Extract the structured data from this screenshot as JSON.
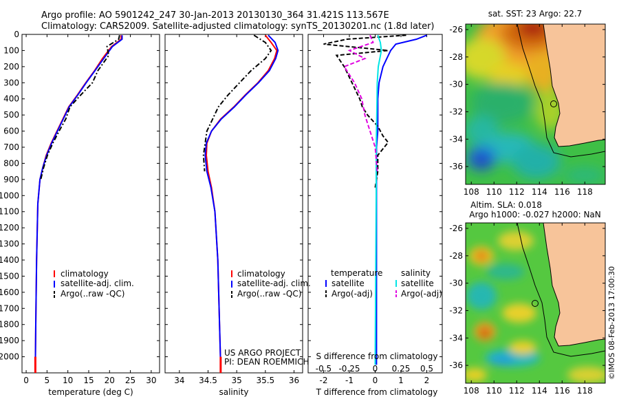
{
  "header": {
    "line1": "Argo profile: AO 5901242_247 30-Jan-2013 20130130_364 31.421S 113.567E",
    "line2": "Climatology: CARS2009. Satellite-adjusted climatology: synTS_20130201.nc (1.8d later)"
  },
  "colors": {
    "climatology": "#ff0000",
    "satellite": "#0000ff",
    "argo": "#000000",
    "salinity_sat": "#00e5e5",
    "salinity_argo": "#e000e0",
    "land": "#f7c49a"
  },
  "chart_data": [
    {
      "type": "line",
      "id": "temperature-profile",
      "xlabel": "temperature (deg C)",
      "ylabel": "",
      "xlim": [
        -1,
        32
      ],
      "ylim": [
        2100,
        0
      ],
      "xticks": [
        0,
        5,
        10,
        15,
        20,
        25,
        30
      ],
      "yticks": [
        0,
        100,
        200,
        300,
        400,
        500,
        600,
        700,
        800,
        900,
        1000,
        1100,
        1200,
        1300,
        1400,
        1500,
        1600,
        1700,
        1800,
        1900,
        2000
      ],
      "series": [
        {
          "name": "climatology",
          "color": "#ff0000",
          "dash": "solid",
          "x": [
            22.8,
            22.8,
            20.5,
            18.3,
            16.4,
            14.3,
            12.3,
            10.2,
            8.8,
            7.4,
            6.0,
            4.8,
            4.0,
            3.3,
            2.8,
            2.5,
            2.3,
            2.2
          ],
          "y": [
            5,
            30,
            75,
            150,
            225,
            300,
            375,
            450,
            525,
            600,
            675,
            750,
            825,
            900,
            1050,
            1400,
            1800,
            2050
          ]
        },
        {
          "name": "satellite-adj. clim.",
          "color": "#0000ff",
          "dash": "solid",
          "x": [
            23.0,
            23.0,
            20.7,
            18.6,
            16.5,
            14.4,
            12.4,
            10.3,
            8.9,
            7.5,
            6.1,
            4.9,
            4.0,
            3.3,
            2.8,
            2.5,
            2.3,
            2.2
          ],
          "y": [
            5,
            30,
            75,
            150,
            225,
            300,
            375,
            450,
            525,
            600,
            675,
            750,
            825,
            900,
            1050,
            1400,
            1800,
            2050
          ]
        },
        {
          "name": "Argo(..raw -QC)",
          "color": "#000000",
          "dash": "dashdot",
          "x": [
            22.4,
            22.2,
            19.4,
            19.8,
            17.2,
            15.9,
            13.1,
            10.5,
            9.5,
            7.9,
            6.4,
            5.1,
            4.2,
            3.5
          ],
          "y": [
            5,
            30,
            75,
            130,
            225,
            300,
            375,
            450,
            525,
            600,
            675,
            750,
            825,
            900
          ]
        }
      ],
      "legend": {
        "position": "lower-middle",
        "entries": [
          "climatology",
          "satellite-adj. clim.",
          "Argo(..raw -QC)"
        ]
      }
    },
    {
      "type": "line",
      "id": "salinity-profile",
      "xlabel": "salinity",
      "xlim": [
        33.75,
        36.15
      ],
      "ylim": [
        2100,
        0
      ],
      "xticks": [
        34,
        34.5,
        35,
        35.5,
        36
      ],
      "xticklabels": [
        "34",
        "34.5",
        "35",
        "35.5",
        "36"
      ],
      "series": [
        {
          "name": "climatology",
          "color": "#ff0000",
          "dash": "solid",
          "x": [
            35.5,
            35.6,
            35.7,
            35.66,
            35.55,
            35.37,
            35.15,
            34.95,
            34.72,
            34.56,
            34.48,
            34.47,
            34.5,
            34.56,
            34.62,
            34.67,
            34.7,
            34.72
          ],
          "y": [
            5,
            50,
            100,
            150,
            225,
            300,
            375,
            450,
            525,
            600,
            675,
            750,
            850,
            950,
            1100,
            1400,
            1800,
            2050
          ]
        },
        {
          "name": "satellite-adj. clim.",
          "color": "#0000ff",
          "dash": "solid",
          "x": [
            35.55,
            35.67,
            35.72,
            35.68,
            35.57,
            35.38,
            35.16,
            34.96,
            34.73,
            34.56,
            34.47,
            34.45,
            34.48,
            34.55,
            34.62,
            34.67,
            34.7,
            34.72
          ],
          "y": [
            5,
            50,
            100,
            150,
            225,
            300,
            375,
            450,
            525,
            600,
            675,
            750,
            850,
            950,
            1100,
            1400,
            1800,
            2050
          ]
        },
        {
          "name": "Argo(..raw -QC)",
          "color": "#000000",
          "dash": "dashdot",
          "x": [
            35.3,
            35.5,
            35.6,
            35.5,
            35.25,
            35.05,
            34.85,
            34.68,
            34.58,
            34.48,
            34.45,
            34.42,
            34.44
          ],
          "y": [
            5,
            50,
            100,
            150,
            225,
            300,
            375,
            450,
            525,
            600,
            675,
            750,
            850
          ]
        }
      ],
      "legend": {
        "position": "lower-middle",
        "entries": [
          "climatology",
          "satellite-adj. clim.",
          "Argo(..raw -QC)"
        ]
      },
      "annotation": {
        "line1": "US ARGO PROJECT",
        "line2": "PI: DEAN ROEMMICH"
      }
    },
    {
      "type": "line",
      "id": "difference-profile",
      "xlabel": "T difference from climatology",
      "xlabel_top": "S difference from climatology",
      "xlim": [
        -2.6,
        2.6
      ],
      "ylim": [
        2100,
        0
      ],
      "xticks": [
        -2,
        -1,
        0,
        1,
        2
      ],
      "xticks_s": [
        -0.5,
        -0.25,
        0,
        0.25,
        0.5
      ],
      "xticklabels_s": [
        "-0.5",
        "-0.25",
        "0",
        "0.25",
        "0.5"
      ],
      "series": [
        {
          "name": "satellite",
          "group": "temperature",
          "color": "#0000ff",
          "dash": "solid",
          "x": [
            2.0,
            1.6,
            0.8,
            0.6,
            0.45,
            0.3,
            0.15,
            0.1,
            0.1,
            0.1,
            0.05,
            0.05,
            0.05,
            0.05,
            0.05
          ],
          "y": [
            5,
            30,
            60,
            100,
            150,
            200,
            300,
            400,
            500,
            600,
            700,
            800,
            1000,
            1500,
            2050
          ]
        },
        {
          "name": "Argo(-adj)",
          "group": "temperature",
          "color": "#000000",
          "dash": "dashed",
          "x": [
            1.2,
            -1.1,
            -2.0,
            0.5,
            -1.5,
            -1.2,
            -0.9,
            -0.6,
            -0.5,
            -0.3,
            0.1,
            0.3,
            0.5,
            0.1,
            0.1,
            0.0
          ],
          "y": [
            5,
            30,
            60,
            100,
            130,
            200,
            300,
            400,
            450,
            500,
            570,
            630,
            670,
            750,
            850,
            950
          ]
        },
        {
          "name": "satellite",
          "group": "salinity",
          "color": "#00e5e5",
          "dash": "solid",
          "x": [
            0.025,
            0.05,
            0.06,
            0.03,
            0.02,
            0.015,
            0.01,
            0.01,
            0.0
          ],
          "y": [
            5,
            50,
            100,
            200,
            300,
            500,
            700,
            1000,
            2050
          ]
        },
        {
          "name": "Argo(-adj)",
          "group": "salinity",
          "color": "#e000e0",
          "dash": "dashed",
          "x": [
            -0.05,
            -0.02,
            -0.25,
            -0.1,
            -0.3,
            -0.2,
            -0.13,
            -0.1,
            -0.05,
            0.0,
            0.02
          ],
          "y": [
            5,
            50,
            100,
            150,
            200,
            300,
            400,
            500,
            600,
            700,
            850
          ]
        }
      ],
      "legend": {
        "position": "lower-middle",
        "group_titles": [
          "temperature",
          "salinity"
        ],
        "entries": [
          "satellite",
          "Argo(-adj)",
          "satellite",
          "Argo(-adj)"
        ]
      }
    },
    {
      "type": "heatmap",
      "id": "sst-map",
      "title": "sat. SST: 23 Argo: 22.7",
      "xticks": [
        108,
        110,
        112,
        114,
        116,
        118
      ],
      "yticks": [
        -26,
        -28,
        -30,
        -32,
        -34,
        -36
      ],
      "xlim": [
        107.5,
        119.8
      ],
      "ylim": [
        -37.3,
        -25.6
      ],
      "argo_position": {
        "lon": 113.567,
        "lat": -31.421
      },
      "colorscale": "jet",
      "grid": false
    },
    {
      "type": "heatmap",
      "id": "sla-map",
      "title_line1": "Altim. SLA: 0.018",
      "title_line2": "Argo h1000: -0.027 h2000: NaN",
      "xticks": [
        108,
        110,
        112,
        114,
        116,
        118
      ],
      "yticks": [
        -26,
        -28,
        -30,
        -32,
        -34,
        -36
      ],
      "xlim": [
        107.5,
        119.8
      ],
      "ylim": [
        -37.3,
        -25.6
      ],
      "argo_position": {
        "lon": 113.567,
        "lat": -31.421
      },
      "colorscale": "jet",
      "grid": false
    }
  ],
  "footer": {
    "timestamp": "©IMOS 08-Feb-2013 17:00:30"
  }
}
